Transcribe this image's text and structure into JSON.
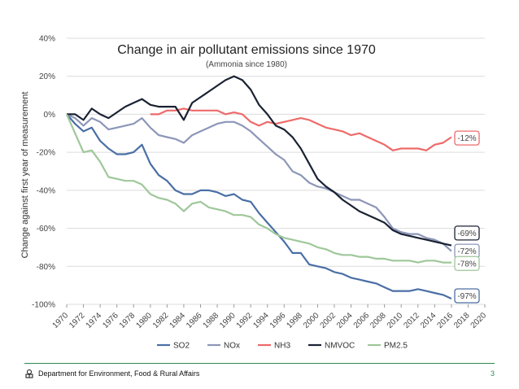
{
  "chart_data": {
    "type": "line",
    "title": "Change in air pollutant emissions since 1970",
    "subtitle": "(Ammonia since 1980)",
    "ylabel": "Change against first year of measurement",
    "xlabel": "",
    "ylim": [
      -100,
      40
    ],
    "xlim": [
      1970,
      2020
    ],
    "yticks": [
      40,
      20,
      0,
      -20,
      -40,
      -60,
      -80,
      -100
    ],
    "ytick_labels": [
      "40%",
      "20%",
      "0%",
      "-20%",
      "-40%",
      "-60%",
      "-80%",
      "-100%"
    ],
    "xticks": [
      1970,
      1972,
      1974,
      1976,
      1978,
      1980,
      1982,
      1984,
      1986,
      1988,
      1990,
      1992,
      1994,
      1996,
      1998,
      2000,
      2002,
      2004,
      2006,
      2008,
      2010,
      2012,
      2014,
      2016,
      2018,
      2020
    ],
    "grid": true,
    "legend": "bottom",
    "series": [
      {
        "name": "SO2",
        "color": "#4a6fa5",
        "end_label": "-97%",
        "x": [
          1970,
          1971,
          1972,
          1973,
          1974,
          1975,
          1976,
          1977,
          1978,
          1979,
          1980,
          1981,
          1982,
          1983,
          1984,
          1985,
          1986,
          1987,
          1988,
          1989,
          1990,
          1991,
          1992,
          1993,
          1994,
          1995,
          1996,
          1997,
          1998,
          1999,
          2000,
          2001,
          2002,
          2003,
          2004,
          2005,
          2006,
          2007,
          2008,
          2009,
          2010,
          2011,
          2012,
          2013,
          2014,
          2015,
          2016
        ],
        "y": [
          0,
          -5,
          -9,
          -7,
          -14,
          -18,
          -21,
          -21,
          -20,
          -16,
          -26,
          -32,
          -35,
          -40,
          -42,
          -42,
          -40,
          -40,
          -41,
          -43,
          -42,
          -45,
          -46,
          -52,
          -57,
          -62,
          -67,
          -73,
          -73,
          -79,
          -80,
          -81,
          -83,
          -84,
          -86,
          -87,
          -88,
          -89,
          -91,
          -93,
          -93,
          -93,
          -92,
          -93,
          -94,
          -95,
          -97
        ]
      },
      {
        "name": "NOx",
        "color": "#8c96b8",
        "end_label": "-72%",
        "x": [
          1970,
          1971,
          1972,
          1973,
          1974,
          1975,
          1976,
          1977,
          1978,
          1979,
          1980,
          1981,
          1982,
          1983,
          1984,
          1985,
          1986,
          1987,
          1988,
          1989,
          1990,
          1991,
          1992,
          1993,
          1994,
          1995,
          1996,
          1997,
          1998,
          1999,
          2000,
          2001,
          2002,
          2003,
          2004,
          2005,
          2006,
          2007,
          2008,
          2009,
          2010,
          2011,
          2012,
          2013,
          2014,
          2015,
          2016
        ],
        "y": [
          0,
          -2,
          -6,
          -2,
          -4,
          -8,
          -7,
          -6,
          -5,
          -2,
          -7,
          -11,
          -12,
          -13,
          -15,
          -11,
          -9,
          -7,
          -5,
          -4,
          -4,
          -6,
          -9,
          -13,
          -17,
          -21,
          -24,
          -30,
          -32,
          -36,
          -38,
          -39,
          -41,
          -43,
          -45,
          -45,
          -47,
          -49,
          -54,
          -60,
          -62,
          -63,
          -63,
          -65,
          -66,
          -68,
          -72
        ]
      },
      {
        "name": "NH3",
        "color": "#ee6a6a",
        "end_label": "-12%",
        "x": [
          1980,
          1981,
          1982,
          1983,
          1984,
          1985,
          1986,
          1987,
          1988,
          1989,
          1990,
          1991,
          1992,
          1993,
          1994,
          1995,
          1996,
          1997,
          1998,
          1999,
          2000,
          2001,
          2002,
          2003,
          2004,
          2005,
          2006,
          2007,
          2008,
          2009,
          2010,
          2011,
          2012,
          2013,
          2014,
          2015,
          2016
        ],
        "y": [
          0,
          0,
          2,
          2,
          3,
          2,
          2,
          2,
          2,
          0,
          1,
          0,
          -4,
          -6,
          -4,
          -5,
          -4,
          -3,
          -2,
          -3,
          -5,
          -7,
          -8,
          -9,
          -11,
          -10,
          -12,
          -14,
          -16,
          -19,
          -18,
          -18,
          -18,
          -19,
          -16,
          -15,
          -12
        ]
      },
      {
        "name": "NMVOC",
        "color": "#1a2233",
        "end_label": "-69%",
        "x": [
          1970,
          1971,
          1972,
          1973,
          1974,
          1975,
          1976,
          1977,
          1978,
          1979,
          1980,
          1981,
          1982,
          1983,
          1984,
          1985,
          1986,
          1987,
          1988,
          1989,
          1990,
          1991,
          1992,
          1993,
          1994,
          1995,
          1996,
          1997,
          1998,
          1999,
          2000,
          2001,
          2002,
          2003,
          2004,
          2005,
          2006,
          2007,
          2008,
          2009,
          2010,
          2011,
          2012,
          2013,
          2014,
          2015,
          2016
        ],
        "y": [
          0,
          0,
          -3,
          3,
          0,
          -2,
          1,
          4,
          6,
          8,
          5,
          4,
          4,
          4,
          -3,
          6,
          9,
          12,
          15,
          18,
          20,
          18,
          13,
          5,
          0,
          -6,
          -8,
          -12,
          -18,
          -26,
          -34,
          -38,
          -41,
          -45,
          -48,
          -51,
          -53,
          -55,
          -57,
          -61,
          -63,
          -64,
          -65,
          -66,
          -67,
          -68,
          -69
        ]
      },
      {
        "name": "PM2.5",
        "color": "#9fc79a",
        "end_label": "-78%",
        "x": [
          1970,
          1971,
          1972,
          1973,
          1974,
          1975,
          1976,
          1977,
          1978,
          1979,
          1980,
          1981,
          1982,
          1983,
          1984,
          1985,
          1986,
          1987,
          1988,
          1989,
          1990,
          1991,
          1992,
          1993,
          1994,
          1995,
          1996,
          1997,
          1998,
          1999,
          2000,
          2001,
          2002,
          2003,
          2004,
          2005,
          2006,
          2007,
          2008,
          2009,
          2010,
          2011,
          2012,
          2013,
          2014,
          2015,
          2016
        ],
        "y": [
          0,
          -10,
          -20,
          -19,
          -25,
          -33,
          -34,
          -35,
          -35,
          -37,
          -42,
          -44,
          -45,
          -47,
          -51,
          -47,
          -46,
          -49,
          -50,
          -51,
          -53,
          -53,
          -54,
          -58,
          -60,
          -63,
          -65,
          -66,
          -67,
          -68,
          -70,
          -71,
          -73,
          -74,
          -74,
          -75,
          -75,
          -76,
          -76,
          -77,
          -77,
          -77,
          -78,
          -77,
          -77,
          -78,
          -78
        ]
      }
    ]
  },
  "footer": {
    "department": "Department for Environment, Food & Rural Affairs",
    "page_number": "3"
  }
}
